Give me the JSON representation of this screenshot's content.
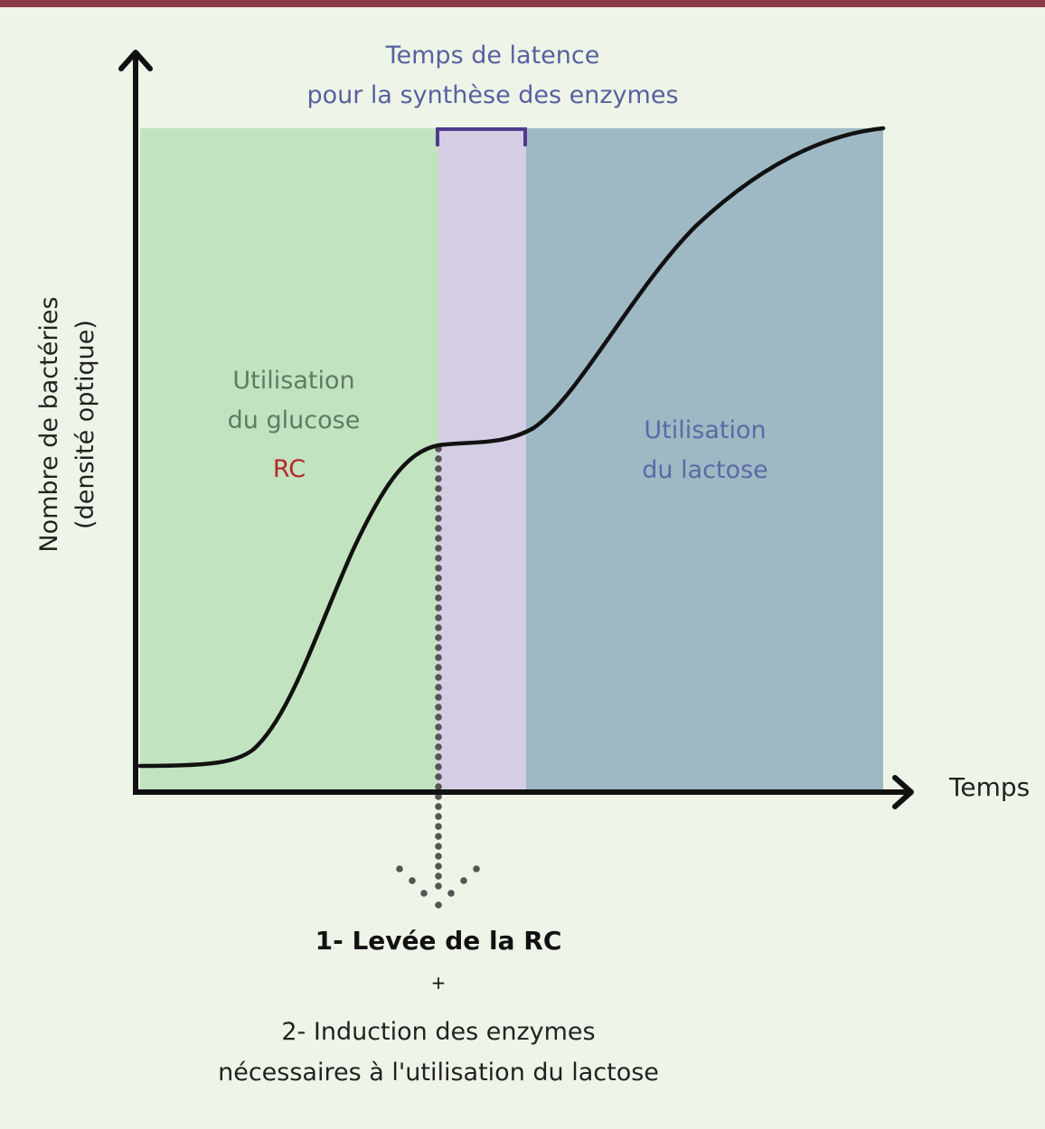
{
  "colors": {
    "top_bar": "#8c3a4a",
    "background": "#eef5e8",
    "glucose_zone": "#c2e3c0",
    "latency_zone": "#d5cde3",
    "lactose_zone": "#9fb9c4",
    "bracket": "#4f3b8c",
    "latency_text": "#5860a0",
    "glucose_text": "#5e7c62",
    "rc_text": "#b8262b",
    "lactose_text": "#5a6aa4",
    "curve": "#111111",
    "dots": "#555555"
  },
  "labels": {
    "latency_line1": "Temps de latence",
    "latency_line2": "pour la synthèse des enzymes",
    "glucose_line1": "Utilisation",
    "glucose_line2": "du glucose",
    "rc": "RC",
    "lactose_line1": "Utilisation",
    "lactose_line2": "du lactose",
    "x_axis": "Temps",
    "y_axis_line1": "Nombre de bactéries",
    "y_axis_line2": "(densité optique)",
    "step1": "1- Levée de la RC",
    "plus": "+",
    "step2_line1": "2- Induction des enzymes",
    "step2_line2": "nécessaires à l'utilisation du lactose"
  }
}
